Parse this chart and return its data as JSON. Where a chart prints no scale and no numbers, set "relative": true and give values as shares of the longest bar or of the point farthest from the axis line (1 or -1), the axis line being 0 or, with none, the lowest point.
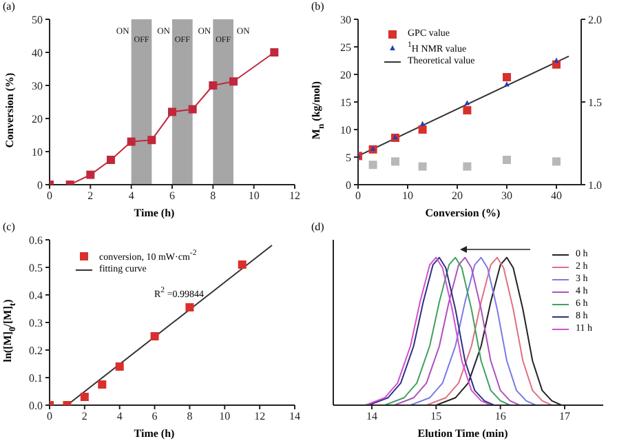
{
  "chart_data": [
    {
      "type": "line",
      "title": "(a)",
      "xlabel": "Time (h)",
      "ylabel": "Conversion (%)",
      "x": [
        0,
        1,
        2,
        3,
        4,
        5,
        6,
        7,
        8,
        9,
        11
      ],
      "marker": "square",
      "series": [
        {
          "color": "#c0283c",
          "values": [
            0,
            0,
            3,
            7.5,
            13,
            13.5,
            22,
            22.8,
            30,
            31.2,
            40
          ]
        }
      ],
      "xlim": [
        0,
        12
      ],
      "xticks": [
        0,
        2,
        4,
        6,
        8,
        10,
        12
      ],
      "ylim": [
        0,
        50
      ],
      "yticks": [
        0,
        10,
        20,
        30,
        40,
        50
      ],
      "bands": [
        {
          "axis": "x",
          "from": 4,
          "to": 5,
          "label": "OFF",
          "color": "#a6a6a6"
        },
        {
          "axis": "x",
          "from": 6,
          "to": 7,
          "label": "OFF",
          "color": "#a6a6a6"
        },
        {
          "axis": "x",
          "from": 8,
          "to": 9,
          "label": "OFF",
          "color": "#a6a6a6"
        }
      ],
      "annotations": [
        "ON",
        "ON",
        "ON",
        "ON"
      ]
    },
    {
      "type": "scatter",
      "title": "(b)",
      "xlabel": "Conversion (%)",
      "ylabel": "M$_{n}$ (kg/mol)",
      "x": [
        0,
        3,
        7.5,
        13,
        22,
        30,
        40
      ],
      "legend": "top left",
      "series": [
        {
          "name": "GPC value",
          "color": "#d9302c",
          "marker": "square",
          "values": [
            5.2,
            6.4,
            8.5,
            10,
            13.5,
            19.5,
            21.8
          ]
        },
        {
          "name": "$^{1}$H NMR value",
          "color": "#2a3fb0",
          "marker": "triangle",
          "values": [
            5.2,
            6.5,
            8.6,
            11,
            14.8,
            18.2,
            22.5
          ]
        },
        {
          "name": "Theoretical value",
          "type": "line",
          "color": "#333333",
          "marker": "none",
          "x": [
            0,
            42.5
          ],
          "values": [
            5.2,
            23.3
          ]
        },
        {
          "color": "#b8b8b8",
          "marker": "square",
          "axis": "y2",
          "x": [
            3,
            7.5,
            13,
            22,
            30,
            40
          ],
          "values": [
            1.12,
            1.14,
            1.11,
            1.11,
            1.15,
            1.14
          ]
        }
      ],
      "xlim": [
        0,
        45
      ],
      "xticks": [
        0,
        10,
        20,
        30,
        40
      ],
      "ylim": [
        0,
        30
      ],
      "yticks": [
        0,
        5,
        10,
        15,
        20,
        25,
        30
      ],
      "y2lim": [
        1,
        2
      ],
      "y2ticks": [
        {
          "value": 1,
          "label": "1.0"
        },
        1.5,
        {
          "value": 2,
          "label": "2.0"
        }
      ]
    },
    {
      "type": "scatter",
      "title": "(c)",
      "xlabel": "Time (h)",
      "ylabel": "ln([M]$_{0}$/[M]$_{t}$)",
      "x": [
        0,
        1,
        2,
        3,
        4,
        6,
        8,
        11
      ],
      "legend": "top left",
      "series": [
        {
          "name": "conversion, 10 mW·cm$^{-2}$",
          "color": "#d9302c",
          "marker": "square",
          "values": [
            0,
            0,
            0.03,
            0.075,
            0.14,
            0.25,
            0.355,
            0.51
          ]
        },
        {
          "name": "fitting curve",
          "type": "line",
          "color": "#333333",
          "marker": "none",
          "x": [
            1,
            12.7
          ],
          "values": [
            0,
            0.58
          ]
        }
      ],
      "xlim": [
        0,
        14
      ],
      "xticks": [
        0,
        2,
        4,
        6,
        8,
        10,
        12,
        14
      ],
      "ylim": [
        0,
        0.6
      ],
      "yticks": [
        {
          "value": 0,
          "label": "0.0"
        },
        0.1,
        0.2,
        0.3,
        0.4,
        0.5,
        0.6
      ],
      "annotations": [
        "R$^{2}$ =0.99844"
      ]
    },
    {
      "type": "line",
      "title": "(d)",
      "xlabel": "Elution Time (min)",
      "relative": true,
      "legend": "top right",
      "tick_labels": "x",
      "marker": "none",
      "series": [
        {
          "name": "0 h",
          "color": "#222222",
          "x": [
            15.0,
            15.3,
            15.5,
            15.7,
            15.85,
            16.0,
            16.1,
            16.2,
            16.35,
            16.5,
            16.65,
            16.8,
            16.95
          ],
          "values": [
            0,
            0.05,
            0.15,
            0.4,
            0.7,
            0.95,
            1,
            0.93,
            0.65,
            0.3,
            0.1,
            0.03,
            0
          ]
        },
        {
          "name": "2 h",
          "color": "#e07080",
          "x": [
            14.85,
            15.15,
            15.35,
            15.55,
            15.7,
            15.85,
            15.95,
            16.05,
            16.2,
            16.35,
            16.5,
            16.65,
            16.8
          ],
          "values": [
            0,
            0.05,
            0.15,
            0.4,
            0.7,
            0.95,
            1,
            0.93,
            0.65,
            0.3,
            0.1,
            0.03,
            0
          ]
        },
        {
          "name": "3 h",
          "color": "#7a7ae8",
          "x": [
            14.6,
            14.9,
            15.1,
            15.3,
            15.45,
            15.6,
            15.7,
            15.8,
            15.95,
            16.1,
            16.25,
            16.4,
            16.55
          ],
          "values": [
            0,
            0.05,
            0.15,
            0.4,
            0.7,
            0.95,
            1,
            0.93,
            0.65,
            0.3,
            0.1,
            0.03,
            0
          ]
        },
        {
          "name": "4 h",
          "color": "#b050c0",
          "x": [
            14.35,
            14.65,
            14.85,
            15.05,
            15.2,
            15.35,
            15.45,
            15.55,
            15.7,
            15.85,
            16.0,
            16.15,
            16.3
          ],
          "values": [
            0,
            0.05,
            0.15,
            0.4,
            0.7,
            0.95,
            1,
            0.93,
            0.65,
            0.3,
            0.1,
            0.03,
            0
          ]
        },
        {
          "name": "6 h",
          "color": "#40a060",
          "x": [
            14.2,
            14.5,
            14.7,
            14.9,
            15.05,
            15.2,
            15.3,
            15.4,
            15.55,
            15.7,
            15.85,
            16.0,
            16.15
          ],
          "values": [
            0,
            0.05,
            0.15,
            0.4,
            0.7,
            0.95,
            1,
            0.93,
            0.65,
            0.3,
            0.1,
            0.03,
            0
          ]
        },
        {
          "name": "8 h",
          "color": "#303080",
          "x": [
            13.95,
            14.25,
            14.45,
            14.65,
            14.8,
            14.95,
            15.05,
            15.15,
            15.3,
            15.45,
            15.6,
            15.75,
            15.9
          ],
          "values": [
            0,
            0.05,
            0.15,
            0.4,
            0.7,
            0.95,
            1,
            0.93,
            0.65,
            0.3,
            0.1,
            0.03,
            0
          ]
        },
        {
          "name": "11 h",
          "color": "#d050d0",
          "x": [
            13.9,
            14.2,
            14.4,
            14.6,
            14.75,
            14.9,
            15.0,
            15.1,
            15.25,
            15.4,
            15.55,
            15.7,
            15.85
          ],
          "values": [
            0,
            0.05,
            0.15,
            0.4,
            0.7,
            0.95,
            1,
            0.93,
            0.65,
            0.3,
            0.1,
            0.03,
            0
          ]
        }
      ],
      "xlim": [
        13.4,
        17.6
      ],
      "xticks": [
        14,
        15,
        16,
        17
      ]
    }
  ]
}
